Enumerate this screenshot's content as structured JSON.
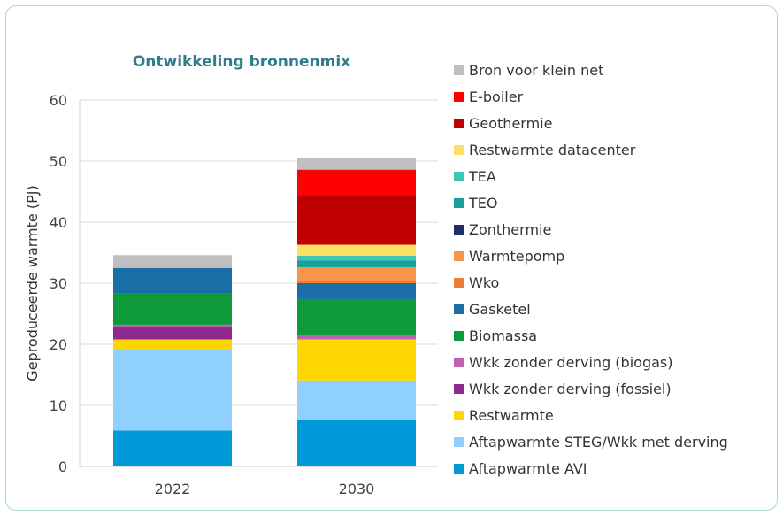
{
  "chart_data": {
    "type": "bar",
    "stacked": true,
    "title": "Ontwikkeling bronnenmix",
    "xlabel": "",
    "ylabel": "Geproduceerde warmte (PJ)",
    "ylim": [
      0,
      60
    ],
    "yticks": [
      0,
      10,
      20,
      30,
      40,
      50,
      60
    ],
    "grid": true,
    "legend_placement": "right",
    "title_color": "#2e7d8a",
    "categories": [
      "2022",
      "2030"
    ],
    "series": [
      {
        "name": "Aftapwarmte AVI",
        "color": "#0099d8",
        "values": [
          5.9,
          7.7
        ]
      },
      {
        "name": "Aftapwarmte STEG/Wkk met derving",
        "color": "#90d0ff",
        "values": [
          13.1,
          6.4
        ]
      },
      {
        "name": "Restwarmte",
        "color": "#ffd700",
        "values": [
          1.8,
          6.7
        ]
      },
      {
        "name": "Wkk zonder derving (fossiel)",
        "color": "#8e2a8e",
        "values": [
          2.0,
          0
        ]
      },
      {
        "name": "Wkk zonder derving (biogas)",
        "color": "#c060b0",
        "values": [
          0.4,
          0.8
        ]
      },
      {
        "name": "Biomassa",
        "color": "#0e9a3a",
        "values": [
          5.2,
          5.8
        ]
      },
      {
        "name": "Gasketel",
        "color": "#1b6fa8",
        "values": [
          4.1,
          2.6
        ]
      },
      {
        "name": "Wko",
        "color": "#ed7d31",
        "values": [
          0,
          0.4
        ]
      },
      {
        "name": "Warmtepomp",
        "color": "#f79646",
        "values": [
          0,
          2.2
        ]
      },
      {
        "name": "Zonthermie",
        "color": "#1f2d6e",
        "values": [
          0,
          0
        ]
      },
      {
        "name": "TEO",
        "color": "#1a9e9e",
        "values": [
          0,
          1.1
        ]
      },
      {
        "name": "TEA",
        "color": "#3cc8b4",
        "values": [
          0,
          0.8
        ]
      },
      {
        "name": "Restwarmte datacenter",
        "color": "#ffe066",
        "values": [
          0,
          1.8
        ]
      },
      {
        "name": "Geothermie",
        "color": "#c00000",
        "values": [
          0,
          7.9
        ]
      },
      {
        "name": "E-boiler",
        "color": "#ff0000",
        "values": [
          0,
          4.4
        ]
      },
      {
        "name": "Bron voor klein net",
        "color": "#bfbfbf",
        "values": [
          2.1,
          1.9
        ]
      }
    ]
  }
}
